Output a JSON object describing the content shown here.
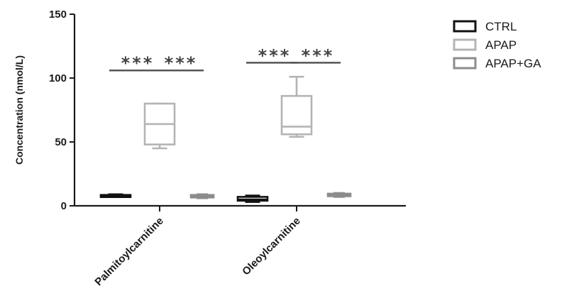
{
  "chart_data": {
    "type": "box",
    "ylabel": "Concentration (nmol/L)",
    "ylim": [
      0,
      150
    ],
    "yticks": [
      0,
      50,
      100,
      150
    ],
    "categories": [
      "Palmitoylcarnitine",
      "Oleoylcarnitine"
    ],
    "legend_position": "top-right",
    "grid": false,
    "series": [
      {
        "name": "CTRL",
        "color": "#111111",
        "boxes": [
          {
            "min": 7,
            "q1": 7.5,
            "median": 8,
            "q3": 8.5,
            "max": 9
          },
          {
            "min": 3,
            "q1": 4,
            "median": 5,
            "q3": 7,
            "max": 8
          }
        ]
      },
      {
        "name": "APAP",
        "color": "#b4b4b4",
        "boxes": [
          {
            "min": 45,
            "q1": 48,
            "median": 64,
            "q3": 80,
            "max": 80
          },
          {
            "min": 54,
            "q1": 56,
            "median": 62,
            "q3": 86,
            "max": 101
          }
        ]
      },
      {
        "name": "APAP+GA",
        "color": "#8c8c8c",
        "boxes": [
          {
            "min": 6,
            "q1": 6.5,
            "median": 7.5,
            "q3": 8.5,
            "max": 9
          },
          {
            "min": 7,
            "q1": 7.5,
            "median": 8.5,
            "q3": 9.5,
            "max": 10
          }
        ]
      }
    ],
    "annotations": [
      {
        "text": "***",
        "category": 0,
        "from_series": 0,
        "to_series": 1,
        "y": 106
      },
      {
        "text": "***",
        "category": 0,
        "from_series": 1,
        "to_series": 2,
        "y": 106
      },
      {
        "text": "***",
        "category": 1,
        "from_series": 0,
        "to_series": 1,
        "y": 112
      },
      {
        "text": "***",
        "category": 1,
        "from_series": 1,
        "to_series": 2,
        "y": 112
      }
    ]
  }
}
